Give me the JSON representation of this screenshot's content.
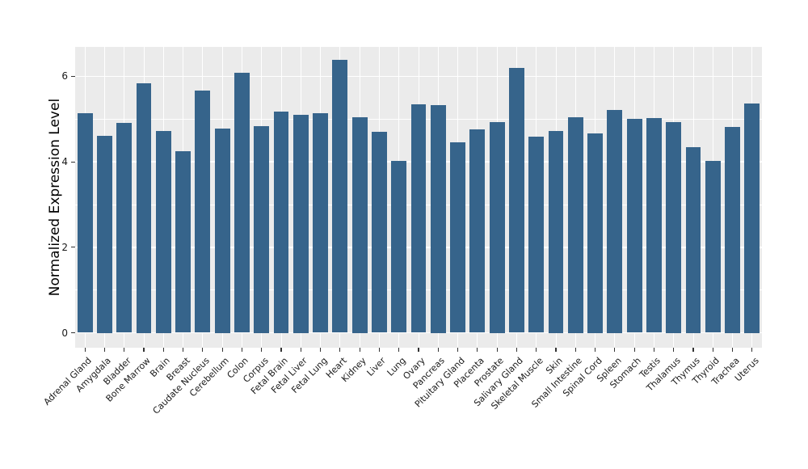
{
  "chart_data": {
    "type": "bar",
    "title": "",
    "xlabel": "",
    "ylabel": "Normalized Expression Level",
    "legend": "none",
    "grid": "on",
    "panel_bg": "#EBEBEB",
    "grid_color": "#FFFFFF",
    "bar_color": "#36648B",
    "tick_color": "#333333",
    "ylim": [
      -0.35,
      6.69
    ],
    "yticks": [
      0,
      2,
      4,
      6
    ],
    "ytick_labels": [
      "0",
      "2",
      "4",
      "6"
    ],
    "yticks_minor": [
      1,
      3,
      5
    ],
    "categories": [
      "Adrenal Gland",
      "Amygdala",
      "Bladder",
      "Bone Marrow",
      "Brain",
      "Breast",
      "Caudate Nucleus",
      "Cerebellum",
      "Colon",
      "Corpus",
      "Fetal Brain",
      "Fetal Liver",
      "Fetal Lung",
      "Heart",
      "Kidney",
      "Liver",
      "Lung",
      "Ovary",
      "Pancreas",
      "Pituitary Gland",
      "Placenta",
      "Prostate",
      "Salivary Gland",
      "Skeletal Muscle",
      "Skin",
      "Small Intestine",
      "Spinal Cord",
      "Spleen",
      "Stomach",
      "Testis",
      "Thalamus",
      "Thymus",
      "Thyroid",
      "Trachea",
      "Uterus"
    ],
    "values": [
      5.14,
      4.6,
      4.91,
      5.83,
      4.72,
      4.24,
      5.67,
      4.77,
      6.08,
      4.84,
      5.17,
      5.1,
      5.14,
      6.39,
      5.04,
      4.7,
      4.02,
      5.34,
      5.33,
      4.46,
      4.76,
      4.93,
      6.19,
      4.59,
      4.72,
      5.04,
      4.66,
      5.21,
      5.01,
      5.03,
      4.93,
      4.34,
      4.02,
      4.82,
      5.37
    ]
  }
}
